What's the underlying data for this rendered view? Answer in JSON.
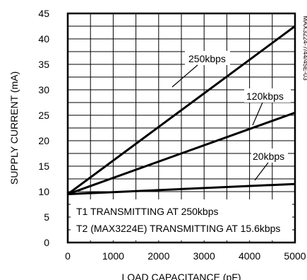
{
  "chart_data": {
    "type": "line",
    "xlabel": "LOAD CAPACITANCE (pF)",
    "ylabel": "SUPPLY CURRENT (mA)",
    "xlim": [
      0,
      5000
    ],
    "ylim": [
      0,
      45
    ],
    "xticks": [
      "0",
      "1000",
      "2000",
      "3000",
      "4000",
      "5000"
    ],
    "yticks": [
      "0",
      "5",
      "10",
      "15",
      "20",
      "25",
      "30",
      "35",
      "40",
      "45"
    ],
    "grid": true,
    "series": [
      {
        "name": "250kbps",
        "x": [
          0,
          5000
        ],
        "values": [
          9.5,
          42.5
        ]
      },
      {
        "name": "120kbps",
        "x": [
          0,
          5000
        ],
        "values": [
          9.5,
          25.5
        ]
      },
      {
        "name": "20kbps",
        "x": [
          0,
          5000
        ],
        "values": [
          9.5,
          11.5
        ]
      }
    ],
    "annotations": [
      "T1 TRANSMITTING AT 250kbps",
      "T2 (MAX3224E) TRANSMITTING AT 15.6kbps"
    ],
    "side_id": "MAX3224-7/44/45E-03"
  }
}
